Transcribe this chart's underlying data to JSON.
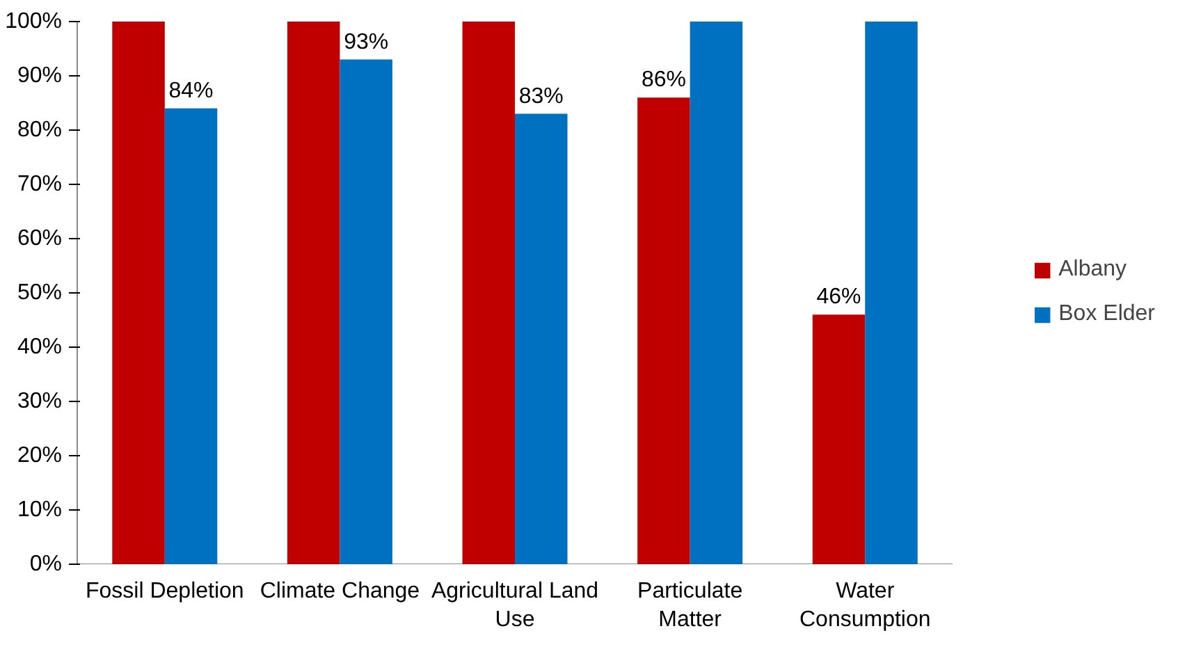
{
  "chart_data": {
    "type": "bar",
    "categories": [
      "Fossil Depletion",
      "Climate Change",
      "Agricultural Land Use",
      "Particulate Matter",
      "Water Consumption"
    ],
    "series": [
      {
        "name": "Albany",
        "color": "#c00000",
        "values": [
          100,
          100,
          100,
          86,
          46
        ],
        "value_labels": [
          null,
          null,
          null,
          "86%",
          "46%"
        ]
      },
      {
        "name": "Box Elder",
        "color": "#0070c0",
        "values": [
          84,
          93,
          83,
          100,
          100
        ],
        "value_labels": [
          "84%",
          "93%",
          "83%",
          null,
          null
        ]
      }
    ],
    "ylim": [
      0,
      100
    ],
    "yticks": [
      {
        "value": 0,
        "label": "0%"
      },
      {
        "value": 10,
        "label": "10%"
      },
      {
        "value": 20,
        "label": "20%"
      },
      {
        "value": 30,
        "label": "30%"
      },
      {
        "value": 40,
        "label": "40%"
      },
      {
        "value": 50,
        "label": "50%"
      },
      {
        "value": 60,
        "label": "60%"
      },
      {
        "value": 70,
        "label": "70%"
      },
      {
        "value": 80,
        "label": "80%"
      },
      {
        "value": 90,
        "label": "90%"
      },
      {
        "value": 100,
        "label": "100%"
      }
    ],
    "grid": false,
    "legend": "right"
  }
}
